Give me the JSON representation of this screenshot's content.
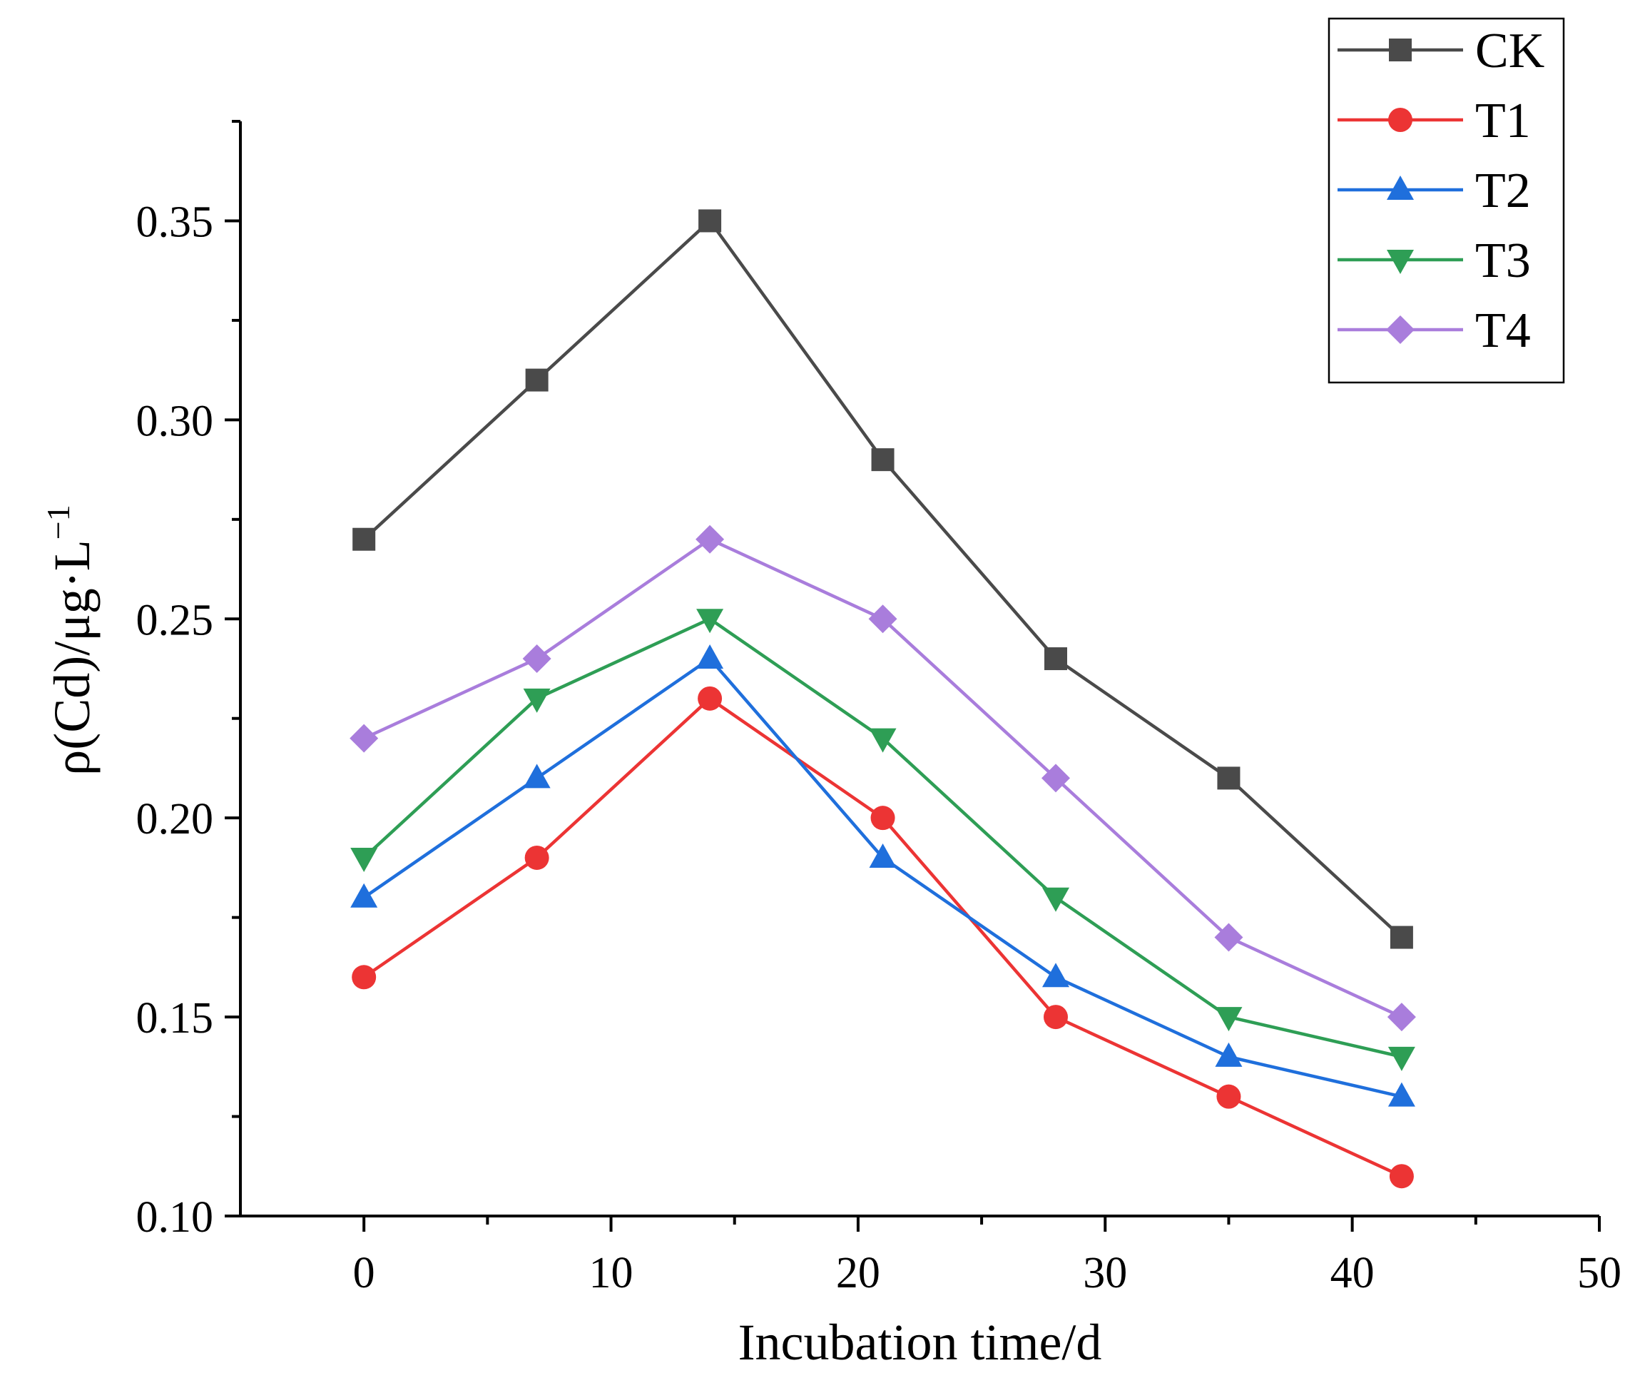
{
  "chart_data": {
    "type": "line",
    "xlabel": "Incubation time/d",
    "ylabel": "ρ(Cd)/μg·L",
    "ylabel_superscript": "−1",
    "xlim": [
      -5,
      50
    ],
    "ylim": [
      0.1,
      0.375
    ],
    "x_ticks": [
      0,
      10,
      20,
      30,
      40,
      50
    ],
    "x_tick_labels": [
      "0",
      "10",
      "20",
      "30",
      "40",
      "50"
    ],
    "x_minor_ticks": [
      5,
      15,
      25,
      35,
      45
    ],
    "y_ticks": [
      0.1,
      0.15,
      0.2,
      0.25,
      0.3,
      0.35
    ],
    "y_tick_labels": [
      "0.10",
      "0.15",
      "0.20",
      "0.25",
      "0.30",
      "0.35"
    ],
    "y_minor_ticks": [
      0.125,
      0.175,
      0.225,
      0.275,
      0.325,
      0.375
    ],
    "grid": false,
    "legend_position": "top-right",
    "x": [
      0,
      7,
      14,
      21,
      28,
      35,
      42
    ],
    "series": [
      {
        "name": "CK",
        "color": "#4a4a4a",
        "marker": "square",
        "values": [
          0.27,
          0.31,
          0.35,
          0.29,
          0.24,
          0.21,
          0.17
        ]
      },
      {
        "name": "T1",
        "color": "#ec3434",
        "marker": "circle",
        "values": [
          0.16,
          0.19,
          0.23,
          0.2,
          0.15,
          0.13,
          0.11
        ]
      },
      {
        "name": "T2",
        "color": "#1f6fdc",
        "marker": "triangle-up",
        "values": [
          0.18,
          0.21,
          0.24,
          0.19,
          0.16,
          0.14,
          0.13
        ]
      },
      {
        "name": "T3",
        "color": "#2e9e55",
        "marker": "triangle-down",
        "values": [
          0.19,
          0.23,
          0.25,
          0.22,
          0.18,
          0.15,
          0.14
        ]
      },
      {
        "name": "T4",
        "color": "#a97ddc",
        "marker": "diamond",
        "values": [
          0.22,
          0.24,
          0.27,
          0.25,
          0.21,
          0.17,
          0.15
        ]
      }
    ]
  }
}
